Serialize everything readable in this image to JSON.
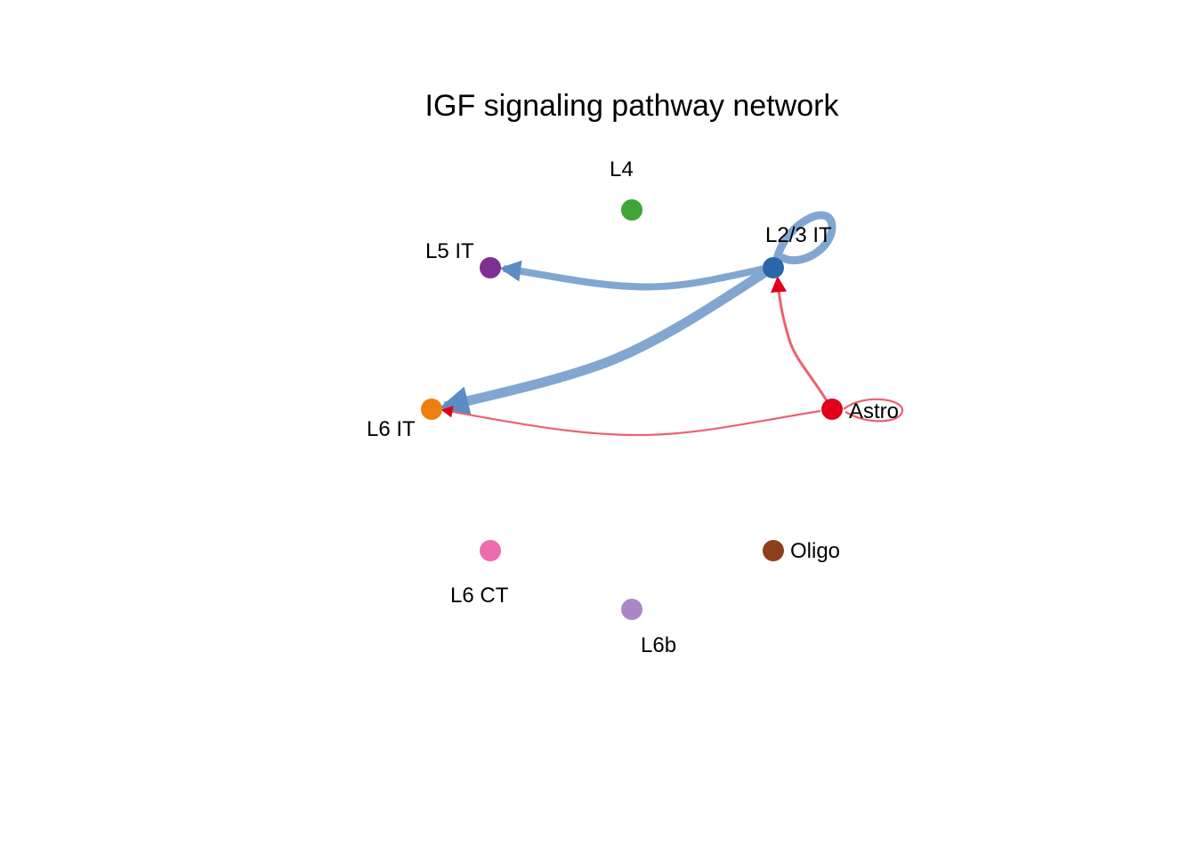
{
  "title": "IGF signaling pathway network",
  "nodes": [
    {
      "id": "L4",
      "label": "L4",
      "color": "#3fa536"
    },
    {
      "id": "L2/3 IT",
      "label": "L2/3 IT",
      "color": "#2b66ad"
    },
    {
      "id": "L5 IT",
      "label": "L5 IT",
      "color": "#7e2f8f"
    },
    {
      "id": "L6 IT",
      "label": "L6 IT",
      "color": "#ee7f0e"
    },
    {
      "id": "Astro",
      "label": "Astro",
      "color": "#e0001a"
    },
    {
      "id": "Oligo",
      "label": "Oligo",
      "color": "#8b3f1b"
    },
    {
      "id": "L6 CT",
      "label": "L6 CT",
      "color": "#ef6bb0"
    },
    {
      "id": "L6b",
      "label": "L6b",
      "color": "#ac87c4"
    }
  ],
  "edges": [
    {
      "from": "L2/3 IT",
      "to": "L2/3 IT",
      "color": "#81a7d1",
      "weight": "strong"
    },
    {
      "from": "L2/3 IT",
      "to": "L5 IT",
      "color": "#81a7d1",
      "weight": "strong"
    },
    {
      "from": "L2/3 IT",
      "to": "L6 IT",
      "color": "#81a7d1",
      "weight": "strongest"
    },
    {
      "from": "Astro",
      "to": "L2/3 IT",
      "color": "#e8636f",
      "weight": "weak"
    },
    {
      "from": "Astro",
      "to": "L6 IT",
      "color": "#e8636f",
      "weight": "weak"
    },
    {
      "from": "Astro",
      "to": "Astro",
      "color": "#e8636f",
      "weight": "weak"
    }
  ]
}
